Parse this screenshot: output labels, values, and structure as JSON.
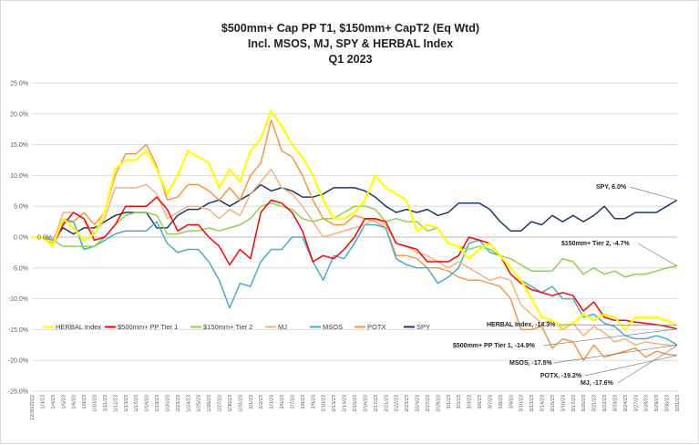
{
  "chart_data": {
    "type": "line",
    "title": "$500mm+ Cap PP T1, $150mm+ CapT2  (Eq Wtd)",
    "subtitle": "Incl. MSOS, MJ, SPY & HERBAL Index",
    "period": "Q1 2023",
    "ylim": [
      -25,
      25
    ],
    "yticks": [
      "25.0%",
      "20.0%",
      "15.0%",
      "10.0%",
      "5.0%",
      "0.0%",
      "-5.0%",
      "-10.0%",
      "-15.0%",
      "-20.0%",
      "-25.0%"
    ],
    "x": [
      "12/30/2022",
      "1/3/23",
      "1/4/23",
      "1/5/23",
      "1/6/23",
      "1/9/23",
      "1/10/23",
      "1/11/23",
      "1/12/23",
      "1/13/23",
      "1/17/23",
      "1/18/23",
      "1/19/23",
      "1/20/23",
      "1/23/23",
      "1/24/23",
      "1/25/23",
      "1/26/23",
      "1/27/23",
      "1/30/23",
      "1/31/23",
      "2/1/23",
      "2/2/23",
      "2/3/23",
      "2/6/23",
      "2/7/23",
      "2/8/23",
      "2/9/23",
      "2/10/23",
      "2/13/23",
      "2/14/23",
      "2/15/23",
      "2/16/23",
      "2/17/23",
      "2/21/23",
      "2/22/23",
      "2/23/23",
      "2/24/23",
      "2/27/23",
      "2/28/23",
      "3/1/23",
      "3/2/23",
      "3/3/23",
      "3/6/23",
      "3/7/23",
      "3/8/23",
      "3/9/23",
      "3/10/23",
      "3/13/23",
      "3/14/23",
      "3/15/23",
      "3/16/23",
      "3/17/23",
      "3/20/23",
      "3/21/23",
      "3/22/23",
      "3/23/23",
      "3/24/23",
      "3/27/23",
      "3/28/23",
      "3/29/23",
      "3/30/23",
      "3/31/23"
    ],
    "xtick_labels": [
      "12/30/2022",
      "1/3/23",
      "1/4/23",
      "1/5/23",
      "1/6/23",
      "1/9/23",
      "1/10/23",
      "1/11/23",
      "1/12/23",
      "1/13/23",
      "1/17/23",
      "1/18/23",
      "1/19/23",
      "1/20/23",
      "1/23/23",
      "1/24/23",
      "1/25/23",
      "1/26/23",
      "1/27/23",
      "1/30/23",
      "1/31/23",
      "2/1/23",
      "2/2/23",
      "2/3/23",
      "2/6/23",
      "2/7/23",
      "2/8/23",
      "2/9/23",
      "2/10/23",
      "2/13/23",
      "2/14/23",
      "2/15/23",
      "2/16/23",
      "2/17/23",
      "2/21/23",
      "2/22/23",
      "2/23/23",
      "2/24/23",
      "2/27/23",
      "2/28/23",
      "3/1/23",
      "3/2/23",
      "3/3/23",
      "3/6/23",
      "3/7/23",
      "3/8/23",
      "3/9/23",
      "3/10/23",
      "3/13/23",
      "3/14/23",
      "3/15/23",
      "3/16/23",
      "3/17/23",
      "3/20/23",
      "3/21/23",
      "3/22/23",
      "3/23/23",
      "3/24/23",
      "3/27/23",
      "3/28/23",
      "3/29/23",
      "3/30/23",
      "3/31/23"
    ],
    "series": [
      {
        "name": "HERBAL Index",
        "color": "#ffff00",
        "width": 2.2,
        "values": [
          0,
          0,
          -1.5,
          3,
          1.5,
          -0.5,
          0.5,
          4,
          11,
          12.5,
          12.5,
          14,
          11,
          7,
          10,
          14,
          13,
          12,
          8,
          11,
          9,
          14,
          16,
          20.5,
          18,
          15,
          13,
          10,
          6,
          3,
          3,
          4,
          6,
          10,
          8,
          7,
          6,
          1,
          2,
          1.5,
          -1,
          -1.5,
          -3.5,
          -2,
          -1,
          -3,
          -5,
          -7,
          -10,
          -13,
          -13.5,
          -14.5,
          -14,
          -12.5,
          -13.5,
          -12.5,
          -13,
          -15,
          -13,
          -13,
          -13,
          -13.5,
          -14.3
        ]
      },
      {
        "name": "$500mm+ PP Tier 1",
        "color": "#ff0000",
        "width": 1.5,
        "values": [
          0,
          0,
          -1.5,
          2,
          4,
          3,
          -0.5,
          0,
          2,
          5,
          5,
          5,
          6.5,
          4.5,
          1,
          2,
          2,
          0,
          -1.5,
          -4.5,
          -2,
          -3.5,
          4,
          6,
          5.5,
          4,
          1,
          -4,
          -3,
          -3.5,
          -2,
          0,
          3,
          3,
          2.5,
          -1,
          -1.5,
          -2,
          -4,
          -4,
          -4,
          -3,
          0,
          -0.5,
          -1,
          -3,
          -6,
          -7.5,
          -8.5,
          -9,
          -9.5,
          -9,
          -9.5,
          -12,
          -10.5,
          -13,
          -13.5,
          -13.5,
          -13.8,
          -14,
          -14.2,
          -14.5,
          -14.9
        ]
      },
      {
        "name": "$150mm+ Tier 2",
        "color": "#92d050",
        "width": 1.5,
        "values": [
          0,
          0,
          -0.5,
          -1.5,
          -1.5,
          -1.5,
          -1.5,
          0,
          2,
          3.5,
          4,
          4,
          3.5,
          0.5,
          0.5,
          1,
          1,
          1.5,
          1,
          1.5,
          2,
          3,
          5,
          5.5,
          5,
          4.5,
          3,
          2.5,
          3,
          3,
          4,
          5,
          5,
          4.5,
          2.5,
          3,
          2.5,
          2.5,
          1,
          1.5,
          -1,
          -1.5,
          -2,
          -1.5,
          -2,
          -3,
          -3.5,
          -4.5,
          -5.5,
          -5.5,
          -5.5,
          -3.5,
          -4,
          -6,
          -5,
          -6,
          -5.5,
          -6.5,
          -6,
          -6,
          -5.5,
          -5,
          -4.7
        ]
      },
      {
        "name": "MJ",
        "color": "#f4b183",
        "width": 1.5,
        "values": [
          0,
          0,
          -1,
          4,
          4,
          3,
          0.5,
          3,
          8,
          8,
          8,
          8.5,
          7,
          3,
          4,
          5,
          5,
          4.5,
          3,
          4.5,
          3.5,
          7,
          9,
          11,
          8,
          7,
          5,
          2.5,
          0,
          0.5,
          1,
          1.5,
          2,
          3,
          2,
          -1,
          -1.5,
          -2.5,
          -3,
          -4,
          -5,
          -4,
          -5,
          -6,
          -7,
          -6.5,
          -7,
          -11,
          -12.5,
          -14,
          -13.5,
          -15,
          -14,
          -16,
          -14.5,
          -15.5,
          -17,
          -16.5,
          -17.5,
          -17,
          -17.3,
          -17.5,
          -17.6
        ]
      },
      {
        "name": "MSOS",
        "color": "#4bacc6",
        "width": 1.5,
        "values": [
          0,
          0,
          -0.5,
          2.5,
          2.5,
          -2,
          -1.5,
          -0.5,
          0.5,
          1,
          1,
          1,
          2.5,
          -1,
          -2.5,
          -2,
          -2,
          -4,
          -7,
          -11.5,
          -7.5,
          -8,
          -4,
          -2,
          -2,
          0,
          0,
          -4,
          -7,
          -3,
          -3.5,
          -1,
          2,
          2,
          1.5,
          -3.5,
          -4.5,
          -5,
          -5,
          -7.5,
          -6.5,
          -5,
          -1,
          -0.5,
          -2.5,
          -3,
          -5,
          -7,
          -8,
          -9,
          -8,
          -10,
          -10,
          -13,
          -12.5,
          -14,
          -14.5,
          -16,
          -16.5,
          -16.5,
          -16,
          -16.5,
          -17.5
        ]
      },
      {
        "name": "POTX",
        "color": "#f79646",
        "width": 1.5,
        "values": [
          0,
          0,
          -1.5,
          3,
          2.5,
          4,
          2,
          4,
          10,
          13.5,
          13.5,
          15,
          11.5,
          6,
          6.5,
          8.5,
          8.5,
          7.5,
          6,
          8,
          6,
          10,
          12,
          19,
          14,
          13,
          10,
          6,
          3,
          2,
          2,
          3.5,
          3,
          2.5,
          1.5,
          -3,
          -3,
          -3.5,
          -5,
          -5,
          -5.5,
          -6.5,
          -7,
          -7,
          -7.5,
          -8,
          -10,
          -15,
          -15,
          -14.5,
          -18,
          -16.5,
          -17,
          -20,
          -17.5,
          -19.5,
          -19,
          -18.5,
          -18,
          -19.5,
          -18.5,
          -19,
          -19.2
        ]
      },
      {
        "name": "SPY",
        "color": "#1f3864",
        "width": 1.5,
        "values": [
          0,
          0,
          -0.5,
          1.5,
          0.5,
          1.5,
          1.5,
          2.5,
          3.5,
          4,
          4,
          4,
          1.5,
          1.5,
          3.5,
          4.5,
          4.5,
          5.5,
          6,
          5,
          6,
          7,
          8.5,
          7.5,
          8,
          7.5,
          6.5,
          6.5,
          7,
          8,
          8,
          8,
          7.5,
          6.5,
          5,
          4,
          4.5,
          4,
          4.5,
          3.5,
          4,
          5.5,
          5.5,
          5.5,
          4.5,
          2.5,
          1,
          1,
          2.5,
          2,
          3.5,
          2.5,
          3.5,
          2.5,
          3.5,
          5,
          3,
          3,
          4,
          4,
          4,
          5,
          6
        ]
      }
    ],
    "annotations": [
      {
        "series": "SPY",
        "text": "SPY, 6.0%"
      },
      {
        "series": "$150mm+ Tier 2",
        "text": "$150mm+ Tier 2, -4.7%"
      },
      {
        "series": "HERBAL Index",
        "text": "HERBAL Index, -14.3%"
      },
      {
        "series": "$500mm+ PP Tier 1",
        "text": "$500mm+ PP Tier 1, -14.9%"
      },
      {
        "series": "MSOS",
        "text": "MSOS, -17.5%"
      },
      {
        "series": "POTX",
        "text": "POTX, -19.2%"
      },
      {
        "series": "MJ",
        "text": "MJ, -17.6%"
      }
    ],
    "start_label": "0.0%",
    "legend_position": "bottom-left"
  }
}
